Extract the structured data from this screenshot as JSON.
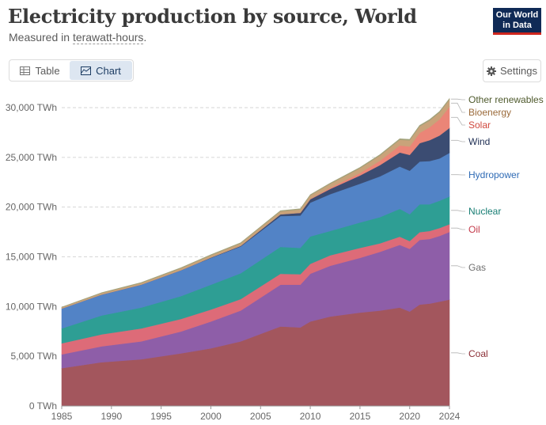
{
  "header": {
    "title": "Electricity production by source, World",
    "subtitle_prefix": "Measured in ",
    "subtitle_unit": "terawatt-hours",
    "subtitle_suffix": "."
  },
  "logo": {
    "line1": "Our World",
    "line2": "in Data"
  },
  "toolbar": {
    "table_label": "Table",
    "chart_label": "Chart",
    "settings_label": "Settings"
  },
  "colors": {
    "coal": "#a3565d",
    "gas": "#8e5ea8",
    "oil": "#dd6b78",
    "nuclear": "#2e9e94",
    "hydropower": "#5283c6",
    "wind": "#3b4c72",
    "solar": "#eb8577",
    "bioenergy": "#c9a37a",
    "other_renewables": "#a2a27a"
  },
  "chart_data": {
    "type": "area",
    "stacked": true,
    "title": "Electricity production by source, World",
    "ylabel": "TWh",
    "ylim": [
      0,
      30000
    ],
    "xlim": [
      1985,
      2024
    ],
    "x_ticks": [
      "1985",
      "1990",
      "1995",
      "2000",
      "2005",
      "2010",
      "2015",
      "2020",
      "2024"
    ],
    "y_ticks": [
      "0 TWh",
      "5,000 TWh",
      "10,000 TWh",
      "15,000 TWh",
      "20,000 TWh",
      "25,000 TWh",
      "30,000 TWh"
    ],
    "x": [
      1985,
      1989,
      1993,
      1997,
      2000,
      2003,
      2007,
      2009,
      2010,
      2012,
      2015,
      2017,
      2019,
      2020,
      2021,
      2022,
      2023,
      2024
    ],
    "series": [
      {
        "key": "coal",
        "name": "Coal",
        "values": [
          3800,
          4400,
          4700,
          5300,
          5800,
          6500,
          8000,
          7900,
          8500,
          9000,
          9400,
          9600,
          9900,
          9500,
          10200,
          10300,
          10500,
          10700
        ]
      },
      {
        "key": "gas",
        "name": "Gas",
        "values": [
          1400,
          1600,
          1800,
          2200,
          2700,
          3100,
          4200,
          4300,
          4800,
          5100,
          5500,
          5900,
          6300,
          6300,
          6500,
          6500,
          6600,
          6800
        ]
      },
      {
        "key": "oil",
        "name": "Oil",
        "values": [
          1100,
          1200,
          1300,
          1250,
          1200,
          1150,
          1100,
          1050,
          1000,
          1050,
          1000,
          850,
          830,
          790,
          780,
          800,
          800,
          780
        ]
      },
      {
        "key": "nuclear",
        "name": "Nuclear",
        "values": [
          1500,
          1900,
          2100,
          2300,
          2500,
          2600,
          2700,
          2650,
          2750,
          2450,
          2550,
          2640,
          2800,
          2700,
          2800,
          2680,
          2740,
          2780
        ]
      },
      {
        "key": "hydropower",
        "name": "Hydropower",
        "values": [
          2000,
          2100,
          2300,
          2600,
          2700,
          2700,
          3100,
          3250,
          3400,
          3700,
          3900,
          4100,
          4250,
          4370,
          4300,
          4350,
          4250,
          4400
        ]
      },
      {
        "key": "wind",
        "name": "Wind",
        "values": [
          0,
          3,
          5,
          10,
          30,
          60,
          170,
          270,
          340,
          530,
          830,
          1130,
          1420,
          1590,
          1850,
          2100,
          2300,
          2500
        ]
      },
      {
        "key": "solar",
        "name": "Solar",
        "values": [
          0,
          0,
          0,
          0,
          1,
          2,
          8,
          20,
          32,
          100,
          250,
          440,
          700,
          850,
          1030,
          1300,
          1630,
          2130
        ]
      },
      {
        "key": "bioenergy",
        "name": "Bioenergy",
        "values": [
          120,
          150,
          170,
          200,
          230,
          260,
          300,
          330,
          360,
          410,
          480,
          530,
          580,
          620,
          660,
          680,
          700,
          720
        ]
      },
      {
        "key": "other_renewables",
        "name": "Other renewables",
        "values": [
          30,
          40,
          45,
          50,
          52,
          54,
          60,
          65,
          68,
          72,
          80,
          85,
          90,
          93,
          96,
          98,
          100,
          102
        ]
      }
    ],
    "legend": [
      {
        "key": "other_renewables",
        "label": "Other renewables",
        "color": "#4f5a2d"
      },
      {
        "key": "bioenergy",
        "label": "Bioenergy",
        "color": "#9b6a3a"
      },
      {
        "key": "solar",
        "label": "Solar",
        "color": "#d0483d"
      },
      {
        "key": "wind",
        "label": "Wind",
        "color": "#1f2f54"
      },
      {
        "key": "hydropower",
        "label": "Hydropower",
        "color": "#2f6bb5"
      },
      {
        "key": "nuclear",
        "label": "Nuclear",
        "color": "#167d73"
      },
      {
        "key": "oil",
        "label": "Oil",
        "color": "#c43a4a"
      },
      {
        "key": "gas",
        "label": "Gas",
        "color": "#6f6f6f"
      },
      {
        "key": "coal",
        "label": "Coal",
        "color": "#8b2e36"
      }
    ]
  }
}
